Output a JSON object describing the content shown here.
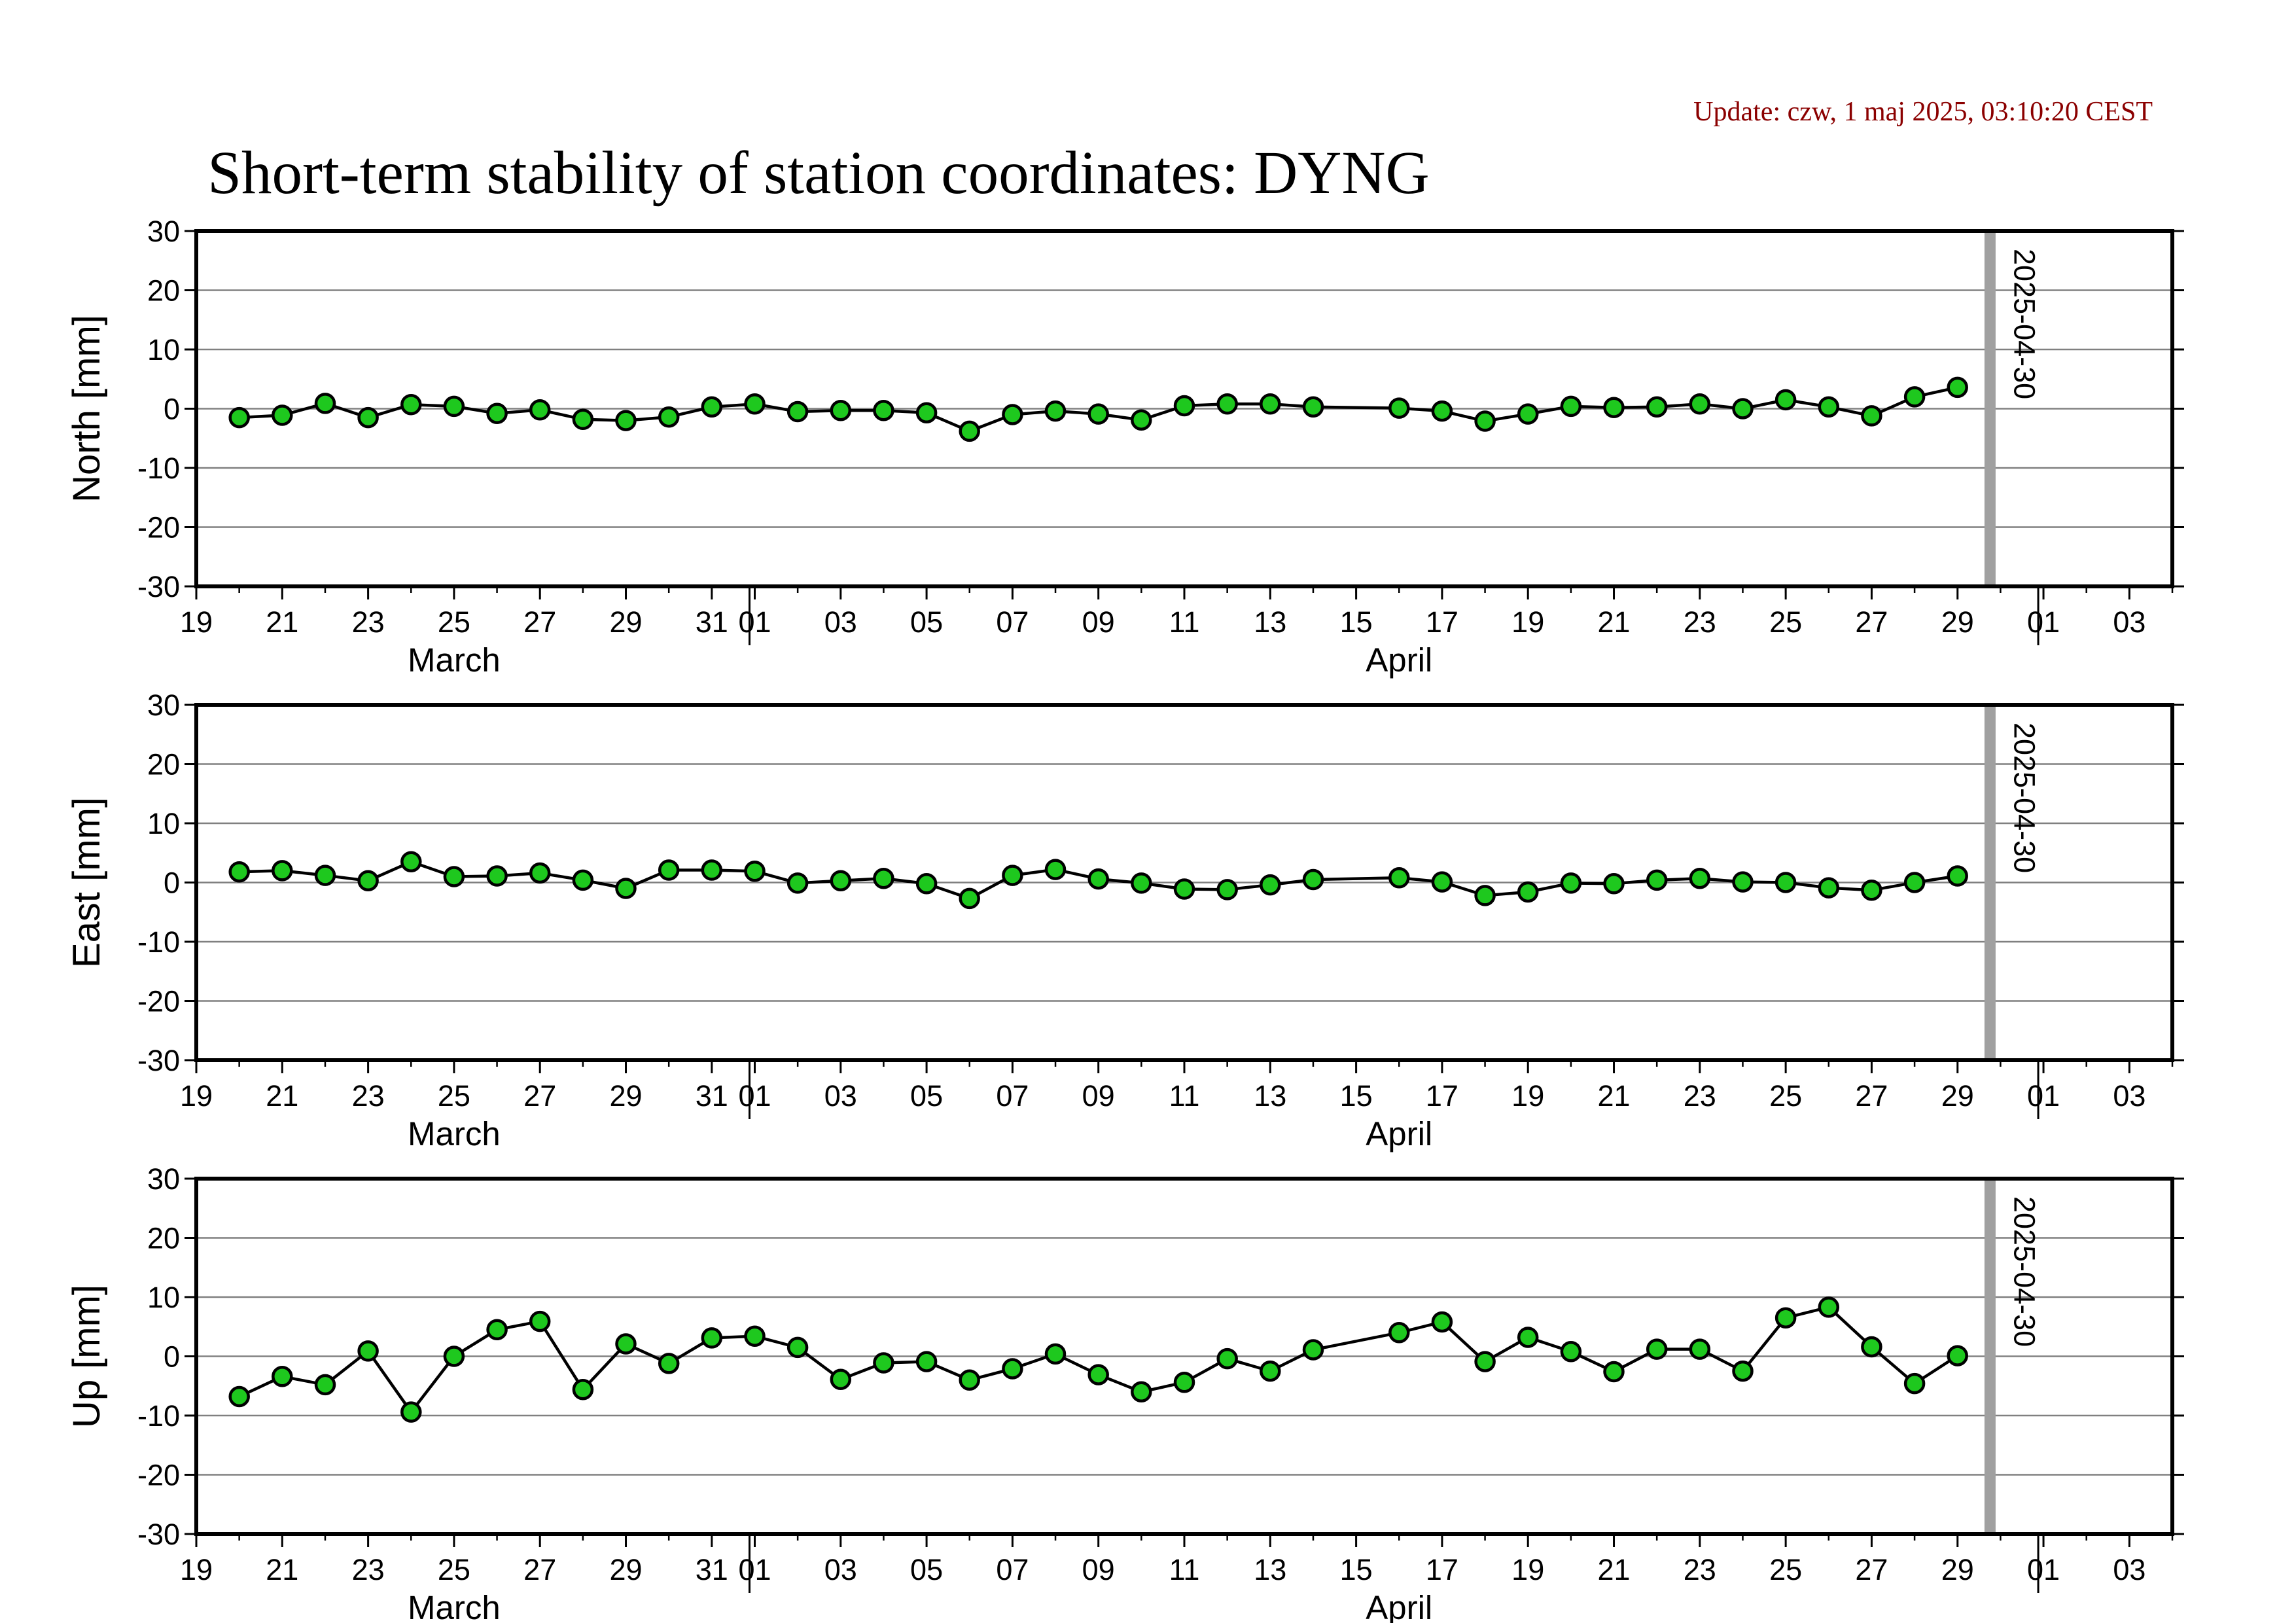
{
  "header": {
    "update": "Update: czw, 1 maj 2025, 03:10:20 CEST",
    "title": "Short-term stability of station coordinates: DYNG"
  },
  "colors": {
    "point_fill": "#1ec81e",
    "point_stroke": "#000000",
    "line": "#000000",
    "grid": "#808080",
    "marker_line": "#a0a0a0"
  },
  "chart_data": [
    {
      "type": "line",
      "ylabel": "North [mm]",
      "ylim": [
        -30,
        30
      ],
      "yticks": [
        -30,
        -20,
        -10,
        0,
        10,
        20,
        30
      ],
      "xlim": [
        "2025-03-19",
        "2025-05-04"
      ],
      "month_labels": [
        {
          "date": "2025-03-25",
          "label": "March"
        },
        {
          "date": "2025-04-16",
          "label": "April"
        }
      ],
      "vline": {
        "date": "2025-04-30",
        "label": "2025-04-30"
      },
      "grid": true,
      "series": [
        {
          "x": [
            "2025-03-20",
            "2025-03-21",
            "2025-03-22",
            "2025-03-23",
            "2025-03-24",
            "2025-03-25",
            "2025-03-26",
            "2025-03-27",
            "2025-03-28",
            "2025-03-29",
            "2025-03-30",
            "2025-03-31",
            "2025-04-01",
            "2025-04-02",
            "2025-04-03",
            "2025-04-04",
            "2025-04-05",
            "2025-04-06",
            "2025-04-07",
            "2025-04-08",
            "2025-04-09",
            "2025-04-10",
            "2025-04-11",
            "2025-04-12",
            "2025-04-13",
            "2025-04-14",
            "2025-04-16",
            "2025-04-17",
            "2025-04-18",
            "2025-04-19",
            "2025-04-20",
            "2025-04-21",
            "2025-04-22",
            "2025-04-23",
            "2025-04-24",
            "2025-04-25",
            "2025-04-26",
            "2025-04-27",
            "2025-04-28",
            "2025-04-29"
          ],
          "y": [
            -1.5,
            -1.1,
            0.9,
            -1.5,
            0.7,
            0.4,
            -0.8,
            -0.2,
            -1.8,
            -2.0,
            -1.4,
            0.3,
            0.8,
            -0.5,
            -0.3,
            -0.3,
            -0.7,
            -3.8,
            -1.0,
            -0.4,
            -0.9,
            -1.9,
            0.5,
            0.8,
            0.8,
            0.3,
            0.1,
            -0.4,
            -2.1,
            -0.9,
            0.4,
            0.2,
            0.3,
            0.8,
            0.0,
            1.5,
            0.3,
            -1.2,
            2.0,
            3.6
          ]
        }
      ]
    },
    {
      "type": "line",
      "ylabel": "East [mm]",
      "ylim": [
        -30,
        30
      ],
      "yticks": [
        -30,
        -20,
        -10,
        0,
        10,
        20,
        30
      ],
      "xlim": [
        "2025-03-19",
        "2025-05-04"
      ],
      "month_labels": [
        {
          "date": "2025-03-25",
          "label": "March"
        },
        {
          "date": "2025-04-16",
          "label": "April"
        }
      ],
      "vline": {
        "date": "2025-04-30",
        "label": "2025-04-30"
      },
      "grid": true,
      "series": [
        {
          "x": [
            "2025-03-20",
            "2025-03-21",
            "2025-03-22",
            "2025-03-23",
            "2025-03-24",
            "2025-03-25",
            "2025-03-26",
            "2025-03-27",
            "2025-03-28",
            "2025-03-29",
            "2025-03-30",
            "2025-03-31",
            "2025-04-01",
            "2025-04-02",
            "2025-04-03",
            "2025-04-04",
            "2025-04-05",
            "2025-04-06",
            "2025-04-07",
            "2025-04-08",
            "2025-04-09",
            "2025-04-10",
            "2025-04-11",
            "2025-04-12",
            "2025-04-13",
            "2025-04-14",
            "2025-04-16",
            "2025-04-17",
            "2025-04-18",
            "2025-04-19",
            "2025-04-20",
            "2025-04-21",
            "2025-04-22",
            "2025-04-23",
            "2025-04-24",
            "2025-04-25",
            "2025-04-26",
            "2025-04-27",
            "2025-04-28",
            "2025-04-29"
          ],
          "y": [
            1.8,
            2.0,
            1.2,
            0.3,
            3.5,
            1.0,
            1.1,
            1.6,
            0.4,
            -1.0,
            2.1,
            2.1,
            1.9,
            -0.1,
            0.3,
            0.7,
            -0.2,
            -2.7,
            1.2,
            2.2,
            0.6,
            -0.1,
            -1.1,
            -1.2,
            -0.4,
            0.5,
            0.8,
            0.1,
            -2.2,
            -1.6,
            -0.1,
            -0.2,
            0.4,
            0.7,
            0.1,
            0.0,
            -0.9,
            -1.3,
            0.0,
            1.1
          ]
        }
      ]
    },
    {
      "type": "line",
      "ylabel": "Up [mm]",
      "ylim": [
        -30,
        30
      ],
      "yticks": [
        -30,
        -20,
        -10,
        0,
        10,
        20,
        30
      ],
      "xlim": [
        "2025-03-19",
        "2025-05-04"
      ],
      "month_labels": [
        {
          "date": "2025-03-25",
          "label": "March"
        },
        {
          "date": "2025-04-16",
          "label": "April"
        }
      ],
      "vline": {
        "date": "2025-04-30",
        "label": "2025-04-30"
      },
      "grid": true,
      "series": [
        {
          "x": [
            "2025-03-20",
            "2025-03-21",
            "2025-03-22",
            "2025-03-23",
            "2025-03-24",
            "2025-03-25",
            "2025-03-26",
            "2025-03-27",
            "2025-03-28",
            "2025-03-29",
            "2025-03-30",
            "2025-03-31",
            "2025-04-01",
            "2025-04-02",
            "2025-04-03",
            "2025-04-04",
            "2025-04-05",
            "2025-04-06",
            "2025-04-07",
            "2025-04-08",
            "2025-04-09",
            "2025-04-10",
            "2025-04-11",
            "2025-04-12",
            "2025-04-13",
            "2025-04-14",
            "2025-04-16",
            "2025-04-17",
            "2025-04-18",
            "2025-04-19",
            "2025-04-20",
            "2025-04-21",
            "2025-04-22",
            "2025-04-23",
            "2025-04-24",
            "2025-04-25",
            "2025-04-26",
            "2025-04-27",
            "2025-04-28",
            "2025-04-29"
          ],
          "y": [
            -6.8,
            -3.4,
            -4.8,
            0.9,
            -9.4,
            0.0,
            4.5,
            5.9,
            -5.6,
            2.1,
            -1.2,
            3.1,
            3.4,
            1.5,
            -3.9,
            -1.1,
            -0.9,
            -4.0,
            -2.1,
            0.4,
            -3.1,
            -6.0,
            -4.4,
            -0.4,
            -2.5,
            1.1,
            4.0,
            5.8,
            -0.9,
            3.2,
            0.8,
            -2.6,
            1.2,
            1.2,
            -2.5,
            6.5,
            8.3,
            1.6,
            -4.6,
            0.1
          ]
        }
      ]
    }
  ]
}
